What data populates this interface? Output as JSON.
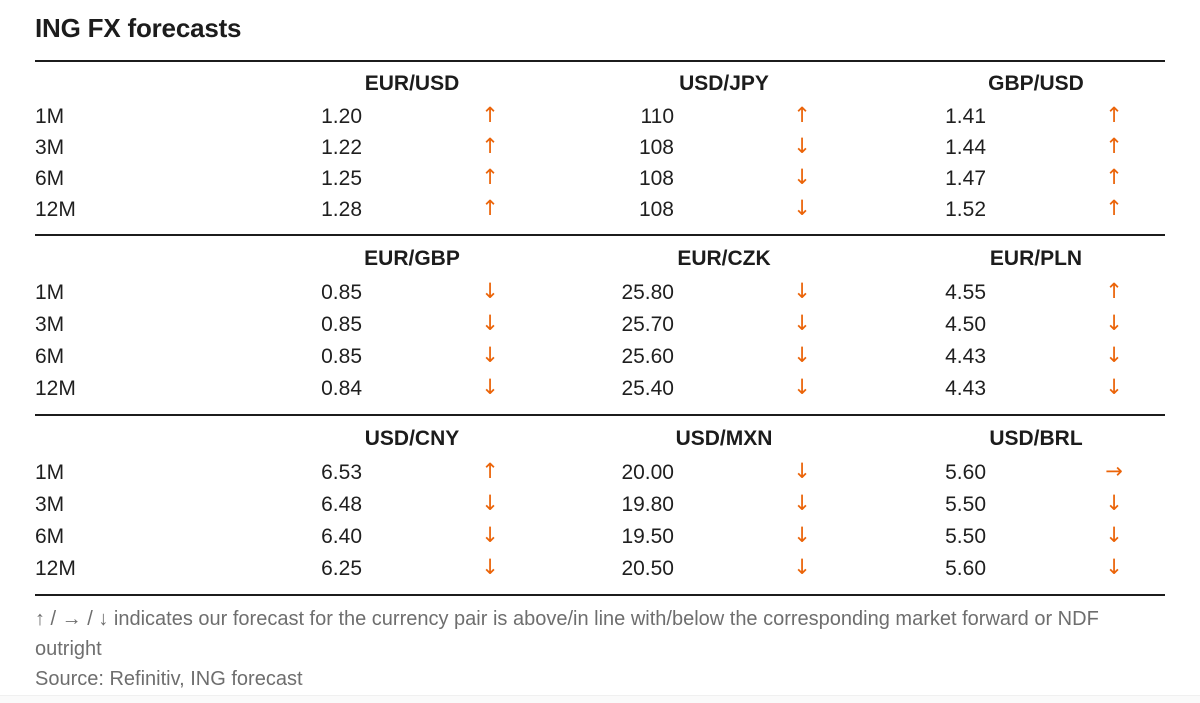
{
  "title": "ING FX forecasts",
  "colors": {
    "accent_orange": "#eb6409",
    "text_dark": "#1f1f1f",
    "text_gray": "#6e6e6e",
    "rule_black": "#1c1c1c"
  },
  "sections": [
    {
      "pairs": [
        "EUR/USD",
        "USD/JPY",
        "GBP/USD"
      ],
      "rows": [
        {
          "tenor": "1M",
          "cells": [
            {
              "value": "1.20",
              "dir": "up",
              "arrow": "↑"
            },
            {
              "value": "110",
              "dir": "up",
              "arrow": "↑"
            },
            {
              "value": "1.41",
              "dir": "up",
              "arrow": "↑"
            }
          ]
        },
        {
          "tenor": "3M",
          "cells": [
            {
              "value": "1.22",
              "dir": "up",
              "arrow": "↑"
            },
            {
              "value": "108",
              "dir": "down",
              "arrow": "↓"
            },
            {
              "value": "1.44",
              "dir": "up",
              "arrow": "↑"
            }
          ]
        },
        {
          "tenor": "6M",
          "cells": [
            {
              "value": "1.25",
              "dir": "up",
              "arrow": "↑"
            },
            {
              "value": "108",
              "dir": "down",
              "arrow": "↓"
            },
            {
              "value": "1.47",
              "dir": "up",
              "arrow": "↑"
            }
          ]
        },
        {
          "tenor": "12M",
          "cells": [
            {
              "value": "1.28",
              "dir": "up",
              "arrow": "↑"
            },
            {
              "value": "108",
              "dir": "down",
              "arrow": "↓"
            },
            {
              "value": "1.52",
              "dir": "up",
              "arrow": "↑"
            }
          ]
        }
      ]
    },
    {
      "pairs": [
        "EUR/GBP",
        "EUR/CZK",
        "EUR/PLN"
      ],
      "rows": [
        {
          "tenor": "1M",
          "cells": [
            {
              "value": "0.85",
              "dir": "down",
              "arrow": "↓"
            },
            {
              "value": "25.80",
              "dir": "down",
              "arrow": "↓"
            },
            {
              "value": "4.55",
              "dir": "up",
              "arrow": "↑"
            }
          ]
        },
        {
          "tenor": "3M",
          "cells": [
            {
              "value": "0.85",
              "dir": "down",
              "arrow": "↓"
            },
            {
              "value": "25.70",
              "dir": "down",
              "arrow": "↓"
            },
            {
              "value": "4.50",
              "dir": "down",
              "arrow": "↓"
            }
          ]
        },
        {
          "tenor": "6M",
          "cells": [
            {
              "value": "0.85",
              "dir": "down",
              "arrow": "↓"
            },
            {
              "value": "25.60",
              "dir": "down",
              "arrow": "↓"
            },
            {
              "value": "4.43",
              "dir": "down",
              "arrow": "↓"
            }
          ]
        },
        {
          "tenor": "12M",
          "cells": [
            {
              "value": "0.84",
              "dir": "down",
              "arrow": "↓"
            },
            {
              "value": "25.40",
              "dir": "down",
              "arrow": "↓"
            },
            {
              "value": "4.43",
              "dir": "down",
              "arrow": "↓"
            }
          ]
        }
      ]
    },
    {
      "pairs": [
        "USD/CNY",
        "USD/MXN",
        "USD/BRL"
      ],
      "rows": [
        {
          "tenor": "1M",
          "cells": [
            {
              "value": "6.53",
              "dir": "up",
              "arrow": "↑"
            },
            {
              "value": "20.00",
              "dir": "down",
              "arrow": "↓"
            },
            {
              "value": "5.60",
              "dir": "flat",
              "arrow": "→"
            }
          ]
        },
        {
          "tenor": "3M",
          "cells": [
            {
              "value": "6.48",
              "dir": "down",
              "arrow": "↓"
            },
            {
              "value": "19.80",
              "dir": "down",
              "arrow": "↓"
            },
            {
              "value": "5.50",
              "dir": "down",
              "arrow": "↓"
            }
          ]
        },
        {
          "tenor": "6M",
          "cells": [
            {
              "value": "6.40",
              "dir": "down",
              "arrow": "↓"
            },
            {
              "value": "19.50",
              "dir": "down",
              "arrow": "↓"
            },
            {
              "value": "5.50",
              "dir": "down",
              "arrow": "↓"
            }
          ]
        },
        {
          "tenor": "12M",
          "cells": [
            {
              "value": "6.25",
              "dir": "down",
              "arrow": "↓"
            },
            {
              "value": "20.50",
              "dir": "down",
              "arrow": "↓"
            },
            {
              "value": "5.60",
              "dir": "down",
              "arrow": "↓"
            }
          ]
        }
      ]
    }
  ],
  "footnote": "↑ / → / ↓ indicates our forecast for the currency pair is above/in line with/below the corresponding market forward or NDF outright",
  "source": "Source: Refinitiv, ING forecast",
  "chart_data": {
    "type": "table",
    "title": "ING FX forecasts",
    "tenors": [
      "1M",
      "3M",
      "6M",
      "12M"
    ],
    "groups": [
      {
        "pairs": [
          "EUR/USD",
          "USD/JPY",
          "GBP/USD"
        ],
        "values": {
          "EUR/USD": [
            1.2,
            1.22,
            1.25,
            1.28
          ],
          "USD/JPY": [
            110,
            108,
            108,
            108
          ],
          "GBP/USD": [
            1.41,
            1.44,
            1.47,
            1.52
          ]
        },
        "directions": {
          "EUR/USD": [
            "up",
            "up",
            "up",
            "up"
          ],
          "USD/JPY": [
            "up",
            "down",
            "down",
            "down"
          ],
          "GBP/USD": [
            "up",
            "up",
            "up",
            "up"
          ]
        }
      },
      {
        "pairs": [
          "EUR/GBP",
          "EUR/CZK",
          "EUR/PLN"
        ],
        "values": {
          "EUR/GBP": [
            0.85,
            0.85,
            0.85,
            0.84
          ],
          "EUR/CZK": [
            25.8,
            25.7,
            25.6,
            25.4
          ],
          "EUR/PLN": [
            4.55,
            4.5,
            4.43,
            4.43
          ]
        },
        "directions": {
          "EUR/GBP": [
            "down",
            "down",
            "down",
            "down"
          ],
          "EUR/CZK": [
            "down",
            "down",
            "down",
            "down"
          ],
          "EUR/PLN": [
            "up",
            "down",
            "down",
            "down"
          ]
        }
      },
      {
        "pairs": [
          "USD/CNY",
          "USD/MXN",
          "USD/BRL"
        ],
        "values": {
          "USD/CNY": [
            6.53,
            6.48,
            6.4,
            6.25
          ],
          "USD/MXN": [
            20.0,
            19.8,
            19.5,
            20.5
          ],
          "USD/BRL": [
            5.6,
            5.5,
            5.5,
            5.6
          ]
        },
        "directions": {
          "USD/CNY": [
            "up",
            "down",
            "down",
            "down"
          ],
          "USD/MXN": [
            "down",
            "down",
            "down",
            "down"
          ],
          "USD/BRL": [
            "flat",
            "down",
            "down",
            "down"
          ]
        }
      }
    ],
    "legend": "↑ / → / ↓ = forecast above / in line with / below the corresponding market forward or NDF outright"
  }
}
